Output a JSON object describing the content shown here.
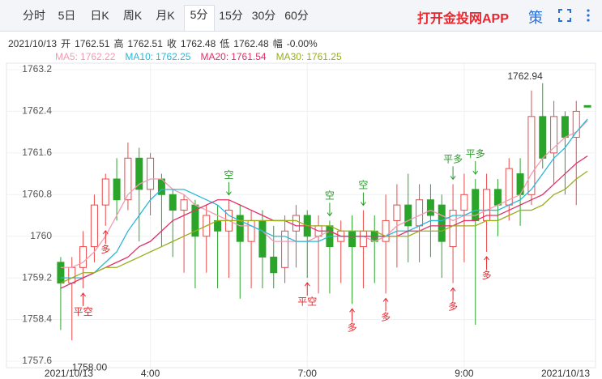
{
  "tabs": [
    "分时",
    "5日",
    "日K",
    "周K",
    "月K",
    "5分",
    "15分",
    "30分",
    "60分"
  ],
  "active_tab": "5分",
  "app_link": "打开金投网APP",
  "icon_text": "策",
  "info": {
    "date": "2021/10/13",
    "items": [
      {
        "label": "开",
        "value": 1762.51
      },
      {
        "label": "高",
        "value": 1762.51
      },
      {
        "label": "收",
        "value": 1762.48
      },
      {
        "label": "低",
        "value": 1762.48
      },
      {
        "label": "幅",
        "value": "-0.00%"
      }
    ]
  },
  "chart_data": {
    "type": "candlestick",
    "categories": [
      "2021/10/13",
      null,
      null,
      null,
      null,
      null,
      null,
      null,
      "4:00",
      null,
      null,
      null,
      null,
      null,
      null,
      null,
      null,
      null,
      null,
      null,
      null,
      null,
      "7:00",
      null,
      null,
      null,
      null,
      null,
      null,
      null,
      null,
      null,
      null,
      null,
      null,
      null,
      "9:00",
      null,
      null,
      null,
      null,
      null,
      null,
      null,
      null,
      null,
      null,
      "2021/10/13"
    ],
    "open": [
      1759.5,
      1759.1,
      1759.4,
      1759.8,
      1760.6,
      1761.1,
      1760.7,
      1761.5,
      1760.9,
      1761.1,
      1760.8,
      1760.5,
      1760.6,
      1760.0,
      1760.3,
      1760.1,
      1760.4,
      1759.9,
      1760.3,
      1759.6,
      1759.4,
      1760.1,
      1760.4,
      1760.0,
      1760.2,
      1759.9,
      1760.1,
      1759.8,
      1760.1,
      1759.9,
      1760.3,
      1760.6,
      1760.2,
      1760.7,
      1760.6,
      1759.8,
      1760.5,
      1760.9,
      1760.3,
      1760.9,
      1760.6,
      1761.2,
      1760.8,
      1762.3,
      1761.6,
      1762.3,
      1761.9,
      1762.51
    ],
    "high": [
      1759.6,
      1759.6,
      1760.1,
      1760.8,
      1761.2,
      1761.5,
      1761.8,
      1761.7,
      1761.6,
      1761.2,
      1760.9,
      1760.8,
      1760.7,
      1760.6,
      1760.6,
      1760.7,
      1760.6,
      1760.5,
      1760.5,
      1760.2,
      1760.4,
      1760.6,
      1760.5,
      1760.4,
      1760.3,
      1760.3,
      1760.4,
      1760.5,
      1760.4,
      1760.8,
      1761.0,
      1761.2,
      1761.0,
      1761.0,
      1760.8,
      1761.0,
      1761.2,
      1761.1,
      1761.2,
      1761.1,
      1761.5,
      1761.5,
      1762.8,
      1762.94,
      1762.6,
      1762.4,
      1762.6,
      1762.51
    ],
    "low": [
      1758.2,
      1758,
      1759.0,
      1759.5,
      1760.2,
      1760.3,
      1760.5,
      1759.9,
      1760.4,
      1759.8,
      1759.6,
      1759.3,
      1759.0,
      1759.3,
      1759.0,
      1759.2,
      1758.8,
      1759.0,
      1759.0,
      1759.0,
      1759.1,
      1759.4,
      1759.2,
      1758.9,
      1758.9,
      1759.1,
      1758.7,
      1759.0,
      1759.1,
      1758.9,
      1759.4,
      1759.5,
      1759.5,
      1759.6,
      1759.2,
      1759.1,
      1759.5,
      1758.3,
      1759.7,
      1760.0,
      1760.3,
      1760.2,
      1760.6,
      1761.3,
      1761.0,
      1760.8,
      1760.6,
      1762.48
    ],
    "close": [
      1759.1,
      1759.4,
      1759.8,
      1760.6,
      1761.1,
      1760.7,
      1761.5,
      1760.9,
      1761.5,
      1760.8,
      1760.5,
      1760.7,
      1760.0,
      1760.4,
      1760.1,
      1760.5,
      1759.9,
      1760.3,
      1759.6,
      1759.3,
      1760.1,
      1760.4,
      1760.0,
      1760.2,
      1759.8,
      1760.1,
      1759.8,
      1760.1,
      1759.9,
      1760.3,
      1760.6,
      1760.2,
      1760.7,
      1760.4,
      1759.9,
      1760.5,
      1760.8,
      1760.3,
      1760.9,
      1760.6,
      1761.3,
      1760.8,
      1762.3,
      1761.5,
      1762.3,
      1761.9,
      1762.4,
      1762.48
    ],
    "up_color": "#e84a4a",
    "down_color": "#2aa52a",
    "series": [
      {
        "name": "MA5:",
        "color": "#f29bb0",
        "values": [
          1759.4,
          1759.4,
          1759.5,
          1759.7,
          1760.0,
          1760.4,
          1760.8,
          1761.0,
          1761.1,
          1761.1,
          1760.9,
          1760.8,
          1760.6,
          1760.5,
          1760.4,
          1760.3,
          1760.2,
          1760.2,
          1760.1,
          1759.9,
          1759.9,
          1759.9,
          1759.9,
          1760.0,
          1760.1,
          1760.0,
          1760.0,
          1760.0,
          1759.9,
          1760.0,
          1760.2,
          1760.3,
          1760.4,
          1760.5,
          1760.4,
          1760.3,
          1760.4,
          1760.4,
          1760.5,
          1760.6,
          1760.7,
          1760.8,
          1761.2,
          1761.5,
          1761.7,
          1761.9,
          1762.0,
          1762.22
        ]
      },
      {
        "name": "MA10:",
        "color": "#2ab7d8",
        "values": [
          1759.2,
          1759.2,
          1759.2,
          1759.3,
          1759.5,
          1759.7,
          1760.1,
          1760.4,
          1760.7,
          1760.9,
          1760.9,
          1760.9,
          1760.8,
          1760.7,
          1760.6,
          1760.4,
          1760.3,
          1760.2,
          1760.1,
          1760.0,
          1760.0,
          1759.9,
          1759.9,
          1759.9,
          1760.0,
          1760.0,
          1760.0,
          1760.0,
          1760.0,
          1760.0,
          1760.1,
          1760.1,
          1760.2,
          1760.3,
          1760.3,
          1760.4,
          1760.4,
          1760.5,
          1760.5,
          1760.5,
          1760.6,
          1760.7,
          1760.9,
          1761.2,
          1761.5,
          1761.7,
          1762.0,
          1762.25
        ]
      },
      {
        "name": "MA20:",
        "color": "#e0306a",
        "values": [
          1759.0,
          1759.1,
          1759.2,
          1759.3,
          1759.4,
          1759.5,
          1759.6,
          1759.8,
          1759.9,
          1760.1,
          1760.3,
          1760.4,
          1760.5,
          1760.6,
          1760.7,
          1760.7,
          1760.6,
          1760.5,
          1760.4,
          1760.3,
          1760.3,
          1760.2,
          1760.2,
          1760.1,
          1760.1,
          1760.0,
          1760.0,
          1760.0,
          1760.0,
          1760.0,
          1760.0,
          1760.1,
          1760.1,
          1760.2,
          1760.2,
          1760.2,
          1760.3,
          1760.3,
          1760.4,
          1760.4,
          1760.5,
          1760.6,
          1760.7,
          1760.8,
          1761.0,
          1761.2,
          1761.4,
          1761.54
        ]
      },
      {
        "name": "MA30:",
        "color": "#9aad1e",
        "values": [
          1759.1,
          1759.2,
          1759.3,
          1759.3,
          1759.4,
          1759.4,
          1759.5,
          1759.6,
          1759.7,
          1759.8,
          1759.9,
          1760.0,
          1760.1,
          1760.2,
          1760.3,
          1760.3,
          1760.3,
          1760.3,
          1760.3,
          1760.3,
          1760.3,
          1760.3,
          1760.2,
          1760.2,
          1760.2,
          1760.1,
          1760.1,
          1760.1,
          1760.1,
          1760.0,
          1760.0,
          1760.0,
          1760.1,
          1760.1,
          1760.1,
          1760.2,
          1760.2,
          1760.2,
          1760.3,
          1760.3,
          1760.4,
          1760.5,
          1760.5,
          1760.6,
          1760.8,
          1760.9,
          1761.1,
          1761.25
        ]
      }
    ],
    "buy_signals": [
      null,
      null,
      "平空",
      null,
      "多",
      null,
      null,
      null,
      null,
      null,
      null,
      null,
      null,
      null,
      null,
      null,
      null,
      null,
      null,
      null,
      null,
      null,
      "平空",
      null,
      null,
      null,
      "多",
      null,
      null,
      "多",
      null,
      null,
      null,
      null,
      null,
      "多",
      null,
      null,
      "多",
      null,
      null,
      null,
      null,
      null,
      null,
      null,
      null,
      null
    ],
    "sell_signals": [
      null,
      null,
      null,
      null,
      null,
      null,
      null,
      null,
      null,
      null,
      null,
      null,
      null,
      null,
      null,
      "空",
      null,
      null,
      null,
      null,
      null,
      null,
      null,
      null,
      "空",
      null,
      null,
      "空",
      null,
      null,
      null,
      null,
      null,
      null,
      null,
      "平多",
      null,
      "平多",
      null,
      null,
      null,
      null,
      null,
      null,
      null,
      null,
      null,
      null
    ],
    "max_label": 1762.94,
    "min_label": {
      "value": 1758,
      "label": "1758.00"
    },
    "ylim": [
      1757.6,
      1763.2
    ],
    "yticks": [
      1763.2,
      1762.4,
      1761.6,
      1760.8,
      1760,
      1759.2,
      1758.4,
      1757.6
    ],
    "grid": true
  }
}
